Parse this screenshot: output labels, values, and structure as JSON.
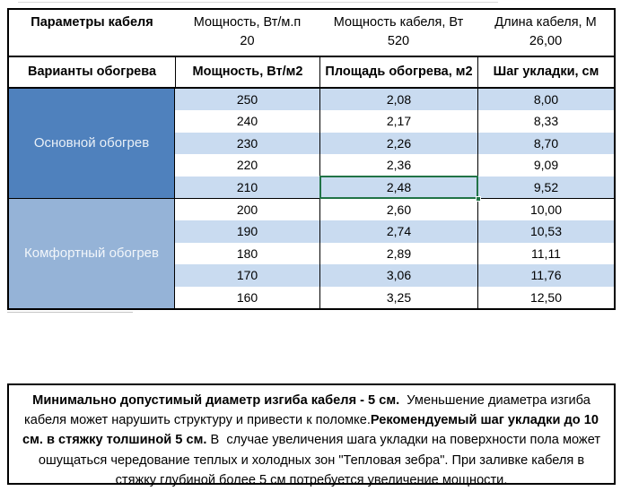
{
  "colors": {
    "section1": "#4f81bd",
    "section2": "#95b3d7",
    "stripe": "#c9dbf0",
    "row_white": "#ffffff",
    "selection_border": "#217346"
  },
  "params": {
    "title": "Параметры кабеля",
    "cols": [
      {
        "label": "Мощность, Вт/м.п",
        "value": "20"
      },
      {
        "label": "Мощность кабеля, Вт",
        "value": "520"
      },
      {
        "label": "Длина кабеля, М",
        "value": "26,00"
      }
    ]
  },
  "heating": {
    "headers": [
      "Варианты обогрева",
      "Мощность, Вт/м2",
      "Площадь обогрева, м2",
      "Шаг укладки, см"
    ],
    "sections": [
      {
        "label": "Основной обогрев",
        "rows": [
          [
            "250",
            "2,08",
            "8,00"
          ],
          [
            "240",
            "2,17",
            "8,33"
          ],
          [
            "230",
            "2,26",
            "8,70"
          ],
          [
            "220",
            "2,36",
            "9,09"
          ],
          [
            "210",
            "2,48",
            "9,52"
          ]
        ]
      },
      {
        "label": "Комфортный обогрев",
        "rows": [
          [
            "200",
            "2,60",
            "10,00"
          ],
          [
            "190",
            "2,74",
            "10,53"
          ],
          [
            "180",
            "2,89",
            "11,11"
          ],
          [
            "170",
            "3,06",
            "11,76"
          ],
          [
            "160",
            "3,25",
            "12,50"
          ]
        ]
      }
    ],
    "selection": {
      "section": 0,
      "row": 4,
      "col": 1,
      "value": "2,48"
    }
  },
  "note": {
    "segments": [
      {
        "text": "Минимально допустимый диаметр изгиба кабеля - 5 см.",
        "bold": true
      },
      {
        "text": "  Уменьшение диаметра изгиба кабеля может нарушить структуру и привести к поломке.",
        "bold": false
      },
      {
        "text": "Рекомендуемый шаг укладки до 10 см. в стяжку толшиной 5 см.",
        "bold": true
      },
      {
        "text": " В  случае увеличения шага укладки на поверхности пола может ошущаться чередование теплых и холодных зон \"Тепловая зебра\". При заливке кабеля в стяжку глубиной более 5 см потребуется увеличение мощности.",
        "bold": false
      }
    ]
  }
}
